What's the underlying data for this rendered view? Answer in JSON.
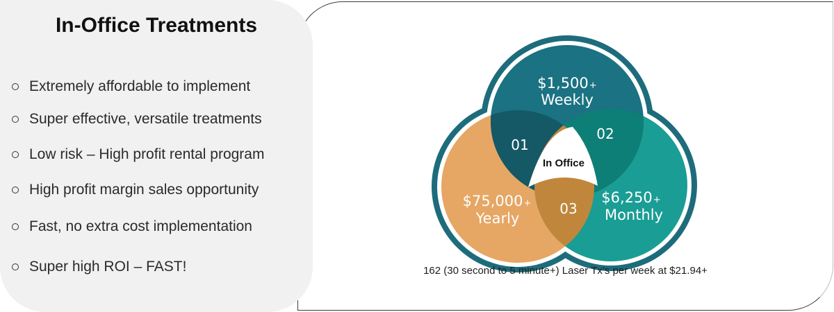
{
  "panel": {
    "title": "In-Office Treatments",
    "benefits": [
      "Extremely affordable to implement",
      "Super effective, versatile treatments",
      "Low risk – High profit rental program",
      "High profit margin sales opportunity",
      "Fast, no extra cost implementation",
      "Super high ROI – FAST!"
    ]
  },
  "diagram": {
    "center_label": "In Office",
    "circles": {
      "top": {
        "amount": "$1,500",
        "suffix": "+",
        "period": "Weekly",
        "color": "#1a7283"
      },
      "right": {
        "amount": "$6,250",
        "suffix": "+",
        "period": "Monthly",
        "color": "#1a9d94"
      },
      "left": {
        "amount": "$75,000",
        "suffix": "+",
        "period": "Yearly",
        "color": "#e6a664"
      }
    },
    "overlaps": {
      "top_left": "01",
      "top_right": "02",
      "left_right": "03"
    },
    "ring_color": "#1d6c7c",
    "caption": "162 (30 second to 5 minute+) Laser Tx’s per week at $21.94+"
  }
}
